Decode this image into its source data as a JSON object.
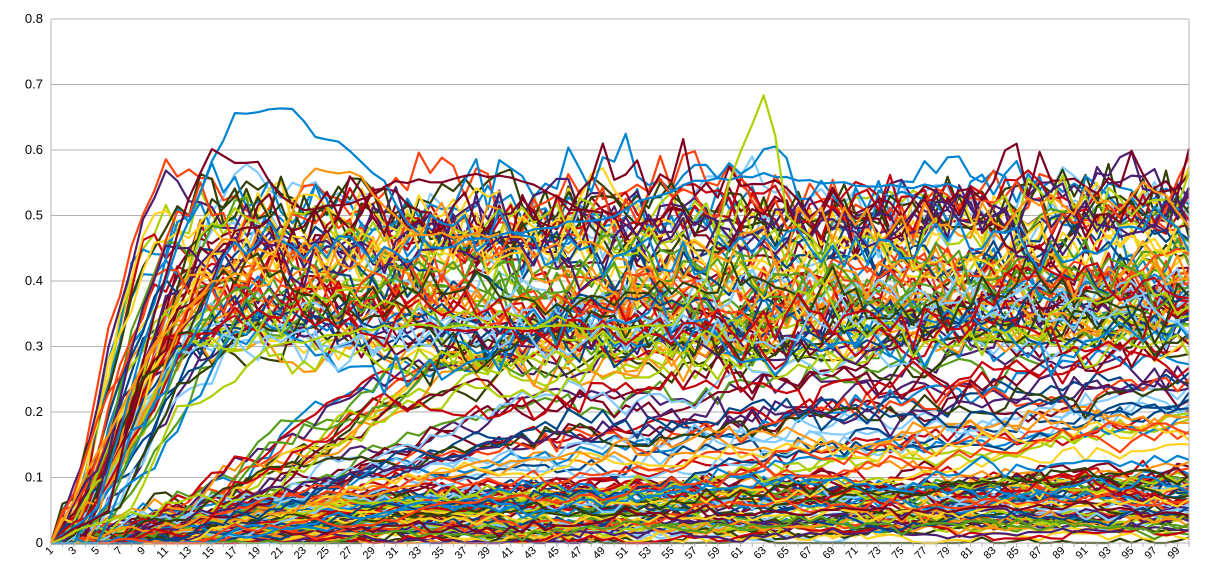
{
  "chart_data": {
    "type": "line",
    "title": "",
    "xlabel": "",
    "ylabel": "",
    "x_range": [
      1,
      100
    ],
    "x_tick_labels": [
      "1",
      "3",
      "5",
      "7",
      "9",
      "11",
      "13",
      "15",
      "17",
      "19",
      "21",
      "23",
      "25",
      "27",
      "29",
      "31",
      "33",
      "35",
      "37",
      "39",
      "41",
      "43",
      "45",
      "47",
      "49",
      "51",
      "53",
      "55",
      "57",
      "59",
      "61",
      "63",
      "65",
      "67",
      "69",
      "71",
      "73",
      "75",
      "77",
      "79",
      "81",
      "83",
      "85",
      "87",
      "89",
      "91",
      "93",
      "95",
      "97",
      "99"
    ],
    "y_tick_labels": [
      "0",
      "0.1",
      "0.2",
      "0.3",
      "0.4",
      "0.5",
      "0.6",
      "0.7",
      "0.8"
    ],
    "ylim": [
      0,
      0.8
    ],
    "grid": "horizontal",
    "legend": "none",
    "palette": [
      "#004586",
      "#ff420e",
      "#ffd320",
      "#579d1c",
      "#7e0021",
      "#83caff",
      "#314004",
      "#aecf00",
      "#4b1f6f",
      "#ff950e",
      "#c5000b",
      "#0084d1"
    ],
    "series_count": 180,
    "series_groups": [
      {
        "description_count": 70,
        "start": 0,
        "rise_end_x": 13,
        "plateau_low": 0.3,
        "plateau_high": 0.5,
        "end_low": 0.3,
        "end_high": 0.56
      },
      {
        "description_count": 45,
        "start": 0,
        "rise_end_x": 40,
        "plateau_low": 0.05,
        "plateau_high": 0.3,
        "end_low": 0.1,
        "end_high": 0.45
      },
      {
        "description_count": 65,
        "start": 0,
        "rise_end_x": 25,
        "plateau_low": 0.0,
        "plateau_high": 0.08,
        "end_low": 0.0,
        "end_high": 0.12
      }
    ],
    "series_highlights": [
      {
        "color": "#0084d1",
        "values_at": {
          "1": 0,
          "5": 0.05,
          "9": 0.3,
          "12": 0.45,
          "15": 0.58,
          "17": 0.655,
          "19": 0.655,
          "21": 0.665,
          "22": 0.663,
          "24": 0.62,
          "26": 0.615,
          "28": 0.58,
          "30": 0.55,
          "32": 0.49,
          "34": 0.45,
          "50": 0.5,
          "52": 0.52,
          "55": 0.535,
          "57": 0.555,
          "60": 0.555,
          "63": 0.565,
          "66": 0.555,
          "70": 0.55,
          "75": 0.545,
          "80": 0.545
        }
      },
      {
        "color": "#7e0021",
        "values_at": {
          "1": 0,
          "6": 0.05,
          "10": 0.35,
          "13": 0.53,
          "15": 0.6,
          "17": 0.58,
          "19": 0.58,
          "21": 0.53,
          "23": 0.51,
          "27": 0.52,
          "29": 0.53,
          "31": 0.555,
          "34": 0.55,
          "37": 0.56,
          "40": 0.56,
          "42": 0.55,
          "45": 0.53,
          "47": 0.51,
          "49": 0.5
        }
      },
      {
        "color": "#aecf00",
        "values_at": {
          "1": 0,
          "8": 0.05,
          "12": 0.21,
          "14": 0.215,
          "17": 0.25,
          "20": 0.3,
          "30": 0.33,
          "45": 0.33,
          "55": 0.33,
          "58": 0.4,
          "60": 0.55,
          "61": 0.6,
          "63": 0.68,
          "64": 0.62,
          "65": 0.5,
          "68": 0.45
        }
      },
      {
        "color": "#ff950e",
        "values_at": {
          "1": 0,
          "10": 0.3,
          "15": 0.4,
          "20": 0.42,
          "23": 0.55,
          "24": 0.57,
          "27": 0.565,
          "28": 0.56,
          "30": 0.51,
          "33": 0.47,
          "40": 0.47
        }
      }
    ]
  }
}
